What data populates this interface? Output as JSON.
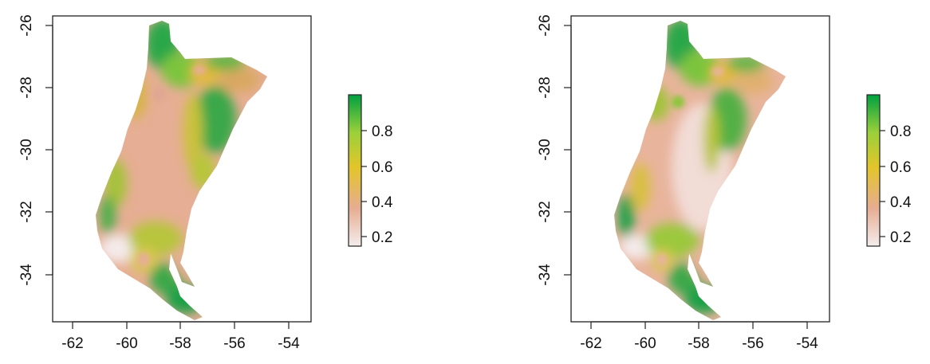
{
  "panels": [
    {
      "id": "left",
      "x_ticks": [
        "-62",
        "-60",
        "-58",
        "-56",
        "-54"
      ],
      "y_ticks": [
        "-26",
        "-28",
        "-30",
        "-32",
        "-34"
      ],
      "legend_ticks": [
        "0.8",
        "0.6",
        "0.4",
        "0.2"
      ]
    },
    {
      "id": "right",
      "x_ticks": [
        "-62",
        "-60",
        "-58",
        "-56",
        "-54"
      ],
      "y_ticks": [
        "-26",
        "-28",
        "-30",
        "-32",
        "-34"
      ],
      "legend_ticks": [
        "0.8",
        "0.6",
        "0.4",
        "0.2"
      ]
    }
  ],
  "colors": {
    "low": "#f2e4e4",
    "low_mid": "#e6ad92",
    "mid": "#e3b51e",
    "mid_high": "#7dc43c",
    "high": "#00a33e"
  },
  "chart_data": {
    "type": "heatmap",
    "x_range": [
      -62.7,
      -53.2
    ],
    "y_range": [
      -35.5,
      -25.9
    ],
    "legend_range": [
      0.13,
      0.99
    ],
    "legend_ticks": [
      0.2,
      0.4,
      0.6,
      0.8
    ]
  }
}
